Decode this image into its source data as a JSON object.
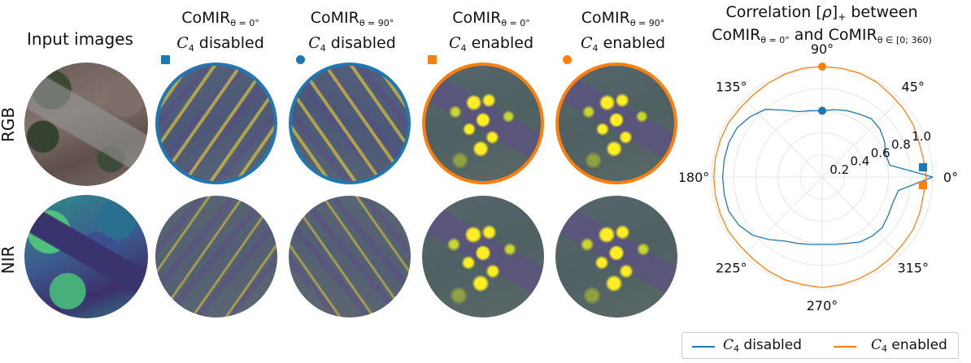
{
  "input_images_label": "Input images",
  "row_labels": {
    "rgb": "RGB",
    "nir": "NIR"
  },
  "columns": [
    {
      "name": "CoMIR",
      "subscript": "θ = 0°",
      "cal": "C",
      "cal_sub": "4",
      "state": "disabled"
    },
    {
      "name": "CoMIR",
      "subscript": "θ = 90°",
      "cal": "C",
      "cal_sub": "4",
      "state": "disabled"
    },
    {
      "name": "CoMIR",
      "subscript": "θ = 0°",
      "cal": "C",
      "cal_sub": "4",
      "state": "enabled"
    },
    {
      "name": "CoMIR",
      "subscript": "θ = 90°",
      "cal": "C",
      "cal_sub": "4",
      "state": "enabled"
    }
  ],
  "colors": {
    "disabled": "#1f77b4",
    "enabled": "#ff7f0e"
  },
  "chart_data": {
    "type": "polar-line",
    "title_line1": "Correlation [ρ]₊ between",
    "title_line2": "CoMIR_{θ=0°} and CoMIR_{θ∈[0; 360)}",
    "title_parts": {
      "line1_prefix": "Correlation [",
      "rho": "ρ",
      "line1_suffix": "]",
      "plus": "+",
      "line1_end": " between",
      "line2_a": "CoMIR",
      "line2_a_sub": "θ = 0°",
      "line2_mid": " and CoMIR",
      "line2_b_sub": "θ ∈ [0; 360)"
    },
    "angle_ticks": [
      "0°",
      "45°",
      "90°",
      "135°",
      "180°",
      "225°",
      "270°",
      "315°"
    ],
    "radial_ticks": [
      "0.2",
      "0.4",
      "0.6",
      "0.8",
      "1.0"
    ],
    "rlim": [
      0,
      1.0
    ],
    "series": [
      {
        "name": "C4 disabled",
        "color": "#1f77b4",
        "angles_deg": [
          0,
          10,
          20,
          30,
          40,
          50,
          60,
          70,
          80,
          90,
          100,
          110,
          120,
          130,
          140,
          150,
          160,
          170,
          180,
          190,
          200,
          210,
          220,
          230,
          240,
          250,
          260,
          270,
          280,
          290,
          300,
          310,
          320,
          330,
          340,
          350,
          360
        ],
        "r": [
          1.0,
          0.62,
          0.61,
          0.65,
          0.68,
          0.69,
          0.66,
          0.64,
          0.62,
          0.6,
          0.61,
          0.63,
          0.7,
          0.8,
          0.85,
          0.89,
          0.9,
          0.9,
          0.9,
          0.9,
          0.9,
          0.87,
          0.82,
          0.74,
          0.67,
          0.64,
          0.62,
          0.61,
          0.62,
          0.64,
          0.68,
          0.7,
          0.71,
          0.69,
          0.68,
          0.7,
          1.0
        ]
      },
      {
        "name": "C4 enabled",
        "color": "#ff7f0e",
        "angles_deg": [
          0,
          10,
          20,
          30,
          40,
          50,
          60,
          70,
          80,
          90,
          100,
          110,
          120,
          130,
          140,
          150,
          160,
          170,
          180,
          190,
          200,
          210,
          220,
          230,
          240,
          250,
          260,
          270,
          280,
          290,
          300,
          310,
          320,
          330,
          340,
          350,
          360
        ],
        "r": [
          0.94,
          0.93,
          0.93,
          0.95,
          0.96,
          0.97,
          0.99,
          1.0,
          1.0,
          1.0,
          1.0,
          0.99,
          0.98,
          0.97,
          0.97,
          0.98,
          0.98,
          0.98,
          0.98,
          0.98,
          0.98,
          0.98,
          0.97,
          0.97,
          0.98,
          0.99,
          0.99,
          1.0,
          0.99,
          0.98,
          0.97,
          0.96,
          0.95,
          0.95,
          0.94,
          0.93,
          0.94
        ]
      }
    ],
    "markers": [
      {
        "series": "C4 disabled",
        "angle_deg": 0,
        "r": 1.0,
        "shape": "square"
      },
      {
        "series": "C4 disabled",
        "angle_deg": 90,
        "r": 0.6,
        "shape": "circle"
      },
      {
        "series": "C4 enabled",
        "angle_deg": 0,
        "r": 0.94,
        "shape": "square"
      },
      {
        "series": "C4 enabled",
        "angle_deg": 90,
        "r": 1.0,
        "shape": "circle"
      }
    ],
    "legend": [
      {
        "label_cal": "C",
        "label_sub": "4",
        "label_text": " disabled",
        "color": "#1f77b4"
      },
      {
        "label_cal": "C",
        "label_sub": "4",
        "label_text": " enabled",
        "color": "#ff7f0e"
      }
    ],
    "legend_position": "bottom"
  }
}
